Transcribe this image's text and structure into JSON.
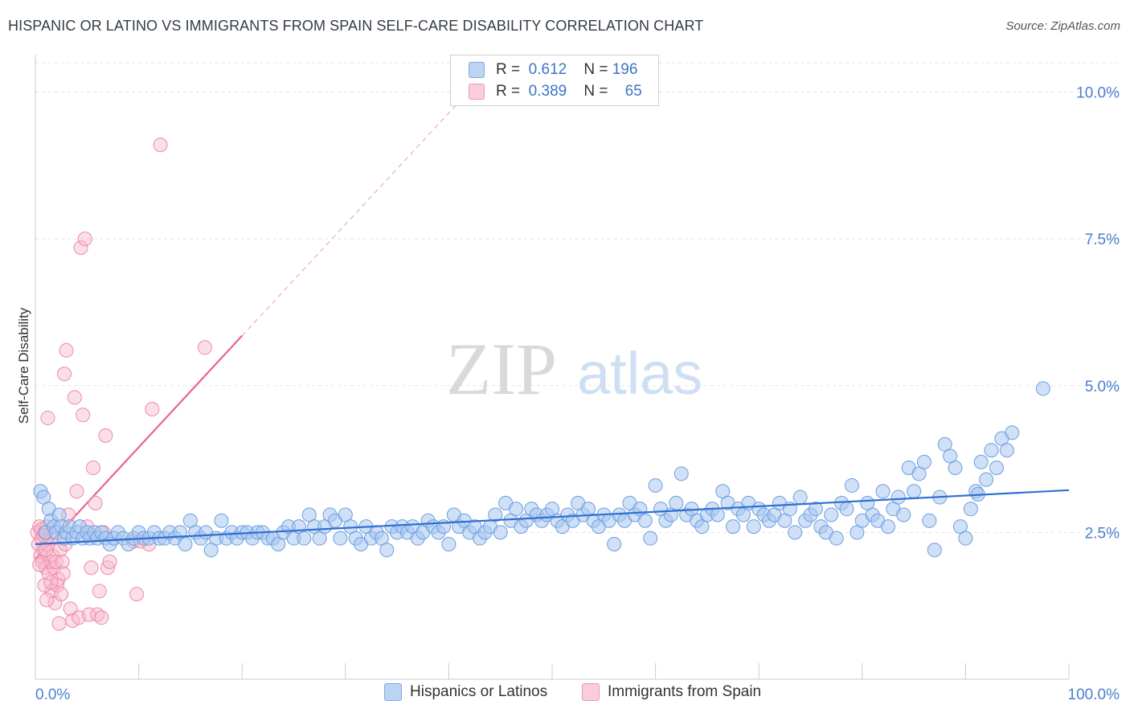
{
  "header": {
    "title": "HISPANIC OR LATINO VS IMMIGRANTS FROM SPAIN SELF-CARE DISABILITY CORRELATION CHART",
    "source": "Source: ZipAtlas.com"
  },
  "watermark": {
    "zip": "ZIP",
    "atlas": "atlas"
  },
  "legend_box": {
    "rows": [
      {
        "r_label": "R =",
        "r_value": "0.612",
        "n_label": "N =",
        "n_value": "196",
        "color": "#a8c6f0"
      },
      {
        "r_label": "R =",
        "r_value": "0.389",
        "n_label": "N =",
        "n_value": "65",
        "color": "#f6b8cb"
      }
    ]
  },
  "bottom_legend": {
    "items": [
      {
        "label": "Hispanics or Latinos",
        "color": "#a8c6f0"
      },
      {
        "label": "Immigrants from Spain",
        "color": "#f6b8cb"
      }
    ]
  },
  "chart_data": {
    "type": "scatter",
    "title": "HISPANIC OR LATINO VS IMMIGRANTS FROM SPAIN SELF-CARE DISABILITY CORRELATION CHART",
    "xlabel": "",
    "ylabel": "Self-Care Disability",
    "xlim": [
      0,
      100
    ],
    "ylim": [
      0,
      10.5
    ],
    "x_tick_labels": [
      "0.0%",
      "100.0%"
    ],
    "y_ticks": [
      2.5,
      5.0,
      7.5,
      10.0
    ],
    "y_tick_labels": [
      "2.5%",
      "5.0%",
      "7.5%",
      "10.0%"
    ],
    "grid": true,
    "colors": {
      "blue_fill": "#a8c6f0",
      "blue_stroke": "#6e9fe0",
      "blue_line": "#2f6fd0",
      "pink_fill": "#f6b8cb",
      "pink_stroke": "#ee8aa8",
      "pink_line": "#e8648e",
      "tick_label": "#4a7fd0"
    },
    "series": [
      {
        "name": "Hispanics or Latinos",
        "trend": {
          "x": [
            0,
            100
          ],
          "y": [
            2.3,
            3.22
          ]
        },
        "points": [
          [
            0.5,
            3.2
          ],
          [
            0.8,
            3.1
          ],
          [
            1.0,
            2.5
          ],
          [
            1.3,
            2.9
          ],
          [
            1.5,
            2.7
          ],
          [
            1.8,
            2.6
          ],
          [
            2.0,
            2.5
          ],
          [
            2.3,
            2.8
          ],
          [
            2.5,
            2.6
          ],
          [
            2.8,
            2.4
          ],
          [
            3.0,
            2.5
          ],
          [
            3.3,
            2.6
          ],
          [
            3.6,
            2.4
          ],
          [
            4.0,
            2.5
          ],
          [
            4.3,
            2.6
          ],
          [
            4.6,
            2.4
          ],
          [
            5.0,
            2.5
          ],
          [
            5.3,
            2.4
          ],
          [
            5.7,
            2.5
          ],
          [
            6.0,
            2.4
          ],
          [
            6.4,
            2.5
          ],
          [
            6.8,
            2.4
          ],
          [
            7.2,
            2.3
          ],
          [
            7.6,
            2.4
          ],
          [
            8.0,
            2.5
          ],
          [
            8.5,
            2.4
          ],
          [
            9.0,
            2.3
          ],
          [
            9.5,
            2.4
          ],
          [
            10.0,
            2.5
          ],
          [
            10.5,
            2.4
          ],
          [
            11.0,
            2.4
          ],
          [
            11.5,
            2.5
          ],
          [
            12.0,
            2.4
          ],
          [
            12.5,
            2.4
          ],
          [
            13.0,
            2.5
          ],
          [
            13.5,
            2.4
          ],
          [
            14.0,
            2.5
          ],
          [
            14.5,
            2.3
          ],
          [
            15.0,
            2.7
          ],
          [
            15.5,
            2.5
          ],
          [
            16.0,
            2.4
          ],
          [
            16.5,
            2.5
          ],
          [
            17.0,
            2.2
          ],
          [
            17.5,
            2.4
          ],
          [
            18.0,
            2.7
          ],
          [
            18.5,
            2.4
          ],
          [
            19.0,
            2.5
          ],
          [
            19.5,
            2.4
          ],
          [
            20.0,
            2.5
          ],
          [
            20.5,
            2.5
          ],
          [
            21.0,
            2.4
          ],
          [
            21.5,
            2.5
          ],
          [
            22.0,
            2.5
          ],
          [
            22.5,
            2.4
          ],
          [
            23.0,
            2.4
          ],
          [
            23.5,
            2.3
          ],
          [
            24.0,
            2.5
          ],
          [
            24.5,
            2.6
          ],
          [
            25.0,
            2.4
          ],
          [
            25.5,
            2.6
          ],
          [
            26.0,
            2.4
          ],
          [
            26.5,
            2.8
          ],
          [
            27.0,
            2.6
          ],
          [
            27.5,
            2.4
          ],
          [
            28.0,
            2.6
          ],
          [
            28.5,
            2.8
          ],
          [
            29.0,
            2.7
          ],
          [
            29.5,
            2.4
          ],
          [
            30.0,
            2.8
          ],
          [
            30.5,
            2.6
          ],
          [
            31.0,
            2.4
          ],
          [
            31.5,
            2.3
          ],
          [
            32.0,
            2.6
          ],
          [
            32.5,
            2.4
          ],
          [
            33.0,
            2.5
          ],
          [
            33.5,
            2.4
          ],
          [
            34.0,
            2.2
          ],
          [
            34.5,
            2.6
          ],
          [
            35.0,
            2.5
          ],
          [
            35.5,
            2.6
          ],
          [
            36.0,
            2.5
          ],
          [
            36.5,
            2.6
          ],
          [
            37.0,
            2.4
          ],
          [
            37.5,
            2.5
          ],
          [
            38.0,
            2.7
          ],
          [
            38.5,
            2.6
          ],
          [
            39.0,
            2.5
          ],
          [
            39.5,
            2.6
          ],
          [
            40.0,
            2.3
          ],
          [
            40.5,
            2.8
          ],
          [
            41.0,
            2.6
          ],
          [
            41.5,
            2.7
          ],
          [
            42.0,
            2.5
          ],
          [
            42.5,
            2.6
          ],
          [
            43.0,
            2.4
          ],
          [
            43.5,
            2.5
          ],
          [
            44.0,
            2.6
          ],
          [
            44.5,
            2.8
          ],
          [
            45.0,
            2.5
          ],
          [
            45.5,
            3.0
          ],
          [
            46.0,
            2.7
          ],
          [
            46.5,
            2.9
          ],
          [
            47.0,
            2.6
          ],
          [
            47.5,
            2.7
          ],
          [
            48.0,
            2.9
          ],
          [
            48.5,
            2.8
          ],
          [
            49.0,
            2.7
          ],
          [
            49.5,
            2.8
          ],
          [
            50.0,
            2.9
          ],
          [
            50.5,
            2.7
          ],
          [
            51.0,
            2.6
          ],
          [
            51.5,
            2.8
          ],
          [
            52.0,
            2.7
          ],
          [
            52.5,
            3.0
          ],
          [
            53.0,
            2.8
          ],
          [
            53.5,
            2.9
          ],
          [
            54.0,
            2.7
          ],
          [
            54.5,
            2.6
          ],
          [
            55.0,
            2.8
          ],
          [
            55.5,
            2.7
          ],
          [
            56.0,
            2.3
          ],
          [
            56.5,
            2.8
          ],
          [
            57.0,
            2.7
          ],
          [
            57.5,
            3.0
          ],
          [
            58.0,
            2.8
          ],
          [
            58.5,
            2.9
          ],
          [
            59.0,
            2.7
          ],
          [
            59.5,
            2.4
          ],
          [
            60.0,
            3.3
          ],
          [
            60.5,
            2.9
          ],
          [
            61.0,
            2.7
          ],
          [
            61.5,
            2.8
          ],
          [
            62.0,
            3.0
          ],
          [
            62.5,
            3.5
          ],
          [
            63.0,
            2.8
          ],
          [
            63.5,
            2.9
          ],
          [
            64.0,
            2.7
          ],
          [
            64.5,
            2.6
          ],
          [
            65.0,
            2.8
          ],
          [
            65.5,
            2.9
          ],
          [
            66.0,
            2.8
          ],
          [
            66.5,
            3.2
          ],
          [
            67.0,
            3.0
          ],
          [
            67.5,
            2.6
          ],
          [
            68.0,
            2.9
          ],
          [
            68.5,
            2.8
          ],
          [
            69.0,
            3.0
          ],
          [
            69.5,
            2.6
          ],
          [
            70.0,
            2.9
          ],
          [
            70.5,
            2.8
          ],
          [
            71.0,
            2.7
          ],
          [
            71.5,
            2.8
          ],
          [
            72.0,
            3.0
          ],
          [
            72.5,
            2.7
          ],
          [
            73.0,
            2.9
          ],
          [
            73.5,
            2.5
          ],
          [
            74.0,
            3.1
          ],
          [
            74.5,
            2.7
          ],
          [
            75.0,
            2.8
          ],
          [
            75.5,
            2.9
          ],
          [
            76.0,
            2.6
          ],
          [
            76.5,
            2.5
          ],
          [
            77.0,
            2.8
          ],
          [
            77.5,
            2.4
          ],
          [
            78.0,
            3.0
          ],
          [
            78.5,
            2.9
          ],
          [
            79.0,
            3.3
          ],
          [
            79.5,
            2.5
          ],
          [
            80.0,
            2.7
          ],
          [
            80.5,
            3.0
          ],
          [
            81.0,
            2.8
          ],
          [
            81.5,
            2.7
          ],
          [
            82.0,
            3.2
          ],
          [
            82.5,
            2.6
          ],
          [
            83.0,
            2.9
          ],
          [
            83.5,
            3.1
          ],
          [
            84.0,
            2.8
          ],
          [
            84.5,
            3.6
          ],
          [
            85.0,
            3.2
          ],
          [
            85.5,
            3.5
          ],
          [
            86.0,
            3.7
          ],
          [
            86.5,
            2.7
          ],
          [
            87.0,
            2.2
          ],
          [
            87.5,
            3.1
          ],
          [
            88.0,
            4.0
          ],
          [
            88.5,
            3.8
          ],
          [
            89.0,
            3.6
          ],
          [
            89.5,
            2.6
          ],
          [
            90.0,
            2.4
          ],
          [
            90.5,
            2.9
          ],
          [
            91.0,
            3.2
          ],
          [
            91.5,
            3.7
          ],
          [
            92.0,
            3.4
          ],
          [
            92.5,
            3.9
          ],
          [
            93.0,
            3.6
          ],
          [
            93.5,
            4.1
          ],
          [
            94.0,
            3.9
          ],
          [
            94.5,
            4.2
          ],
          [
            97.5,
            4.95
          ],
          [
            91.2,
            3.15
          ]
        ]
      },
      {
        "name": "Immigrants from Spain",
        "trend": {
          "x": [
            0,
            20
          ],
          "y": [
            2.05,
            5.85
          ]
        },
        "trend_dashed": {
          "x": [
            20,
            44
          ],
          "y": [
            5.85,
            10.4
          ]
        },
        "points": [
          [
            0.2,
            2.5
          ],
          [
            0.3,
            2.3
          ],
          [
            0.4,
            2.6
          ],
          [
            0.5,
            2.1
          ],
          [
            0.6,
            2.4
          ],
          [
            0.7,
            2.0
          ],
          [
            0.8,
            2.2
          ],
          [
            0.9,
            2.5
          ],
          [
            1.0,
            1.9
          ],
          [
            1.1,
            2.6
          ],
          [
            1.2,
            2.3
          ],
          [
            1.3,
            1.8
          ],
          [
            1.4,
            2.0
          ],
          [
            1.5,
            2.4
          ],
          [
            1.6,
            1.5
          ],
          [
            1.7,
            2.1
          ],
          [
            1.8,
            1.9
          ],
          [
            1.9,
            1.3
          ],
          [
            2.0,
            2.0
          ],
          [
            2.1,
            1.6
          ],
          [
            2.2,
            1.7
          ],
          [
            2.3,
            0.95
          ],
          [
            2.4,
            2.2
          ],
          [
            2.5,
            1.45
          ],
          [
            2.6,
            2.0
          ],
          [
            2.7,
            1.8
          ],
          [
            2.8,
            5.2
          ],
          [
            2.9,
            2.3
          ],
          [
            3.0,
            5.6
          ],
          [
            3.2,
            2.8
          ],
          [
            3.4,
            1.2
          ],
          [
            3.6,
            1.0
          ],
          [
            3.8,
            4.8
          ],
          [
            4.0,
            3.2
          ],
          [
            4.2,
            1.05
          ],
          [
            4.4,
            7.35
          ],
          [
            4.6,
            4.5
          ],
          [
            4.8,
            7.5
          ],
          [
            5.0,
            2.6
          ],
          [
            5.2,
            1.1
          ],
          [
            5.4,
            1.9
          ],
          [
            5.6,
            3.6
          ],
          [
            5.8,
            3.0
          ],
          [
            6.0,
            1.1
          ],
          [
            6.2,
            1.5
          ],
          [
            6.4,
            1.05
          ],
          [
            6.6,
            2.5
          ],
          [
            6.8,
            4.15
          ],
          [
            7.0,
            1.9
          ],
          [
            7.2,
            2.0
          ],
          [
            9.5,
            2.35
          ],
          [
            9.8,
            1.45
          ],
          [
            10.2,
            2.35
          ],
          [
            11.0,
            2.3
          ],
          [
            11.3,
            4.6
          ],
          [
            12.1,
            9.1
          ],
          [
            16.4,
            5.65
          ],
          [
            1.2,
            4.45
          ],
          [
            0.9,
            1.6
          ],
          [
            1.5,
            1.65
          ],
          [
            0.4,
            1.95
          ],
          [
            0.6,
            2.55
          ],
          [
            0.8,
            2.45
          ],
          [
            1.0,
            2.2
          ],
          [
            1.1,
            1.35
          ]
        ]
      }
    ]
  }
}
